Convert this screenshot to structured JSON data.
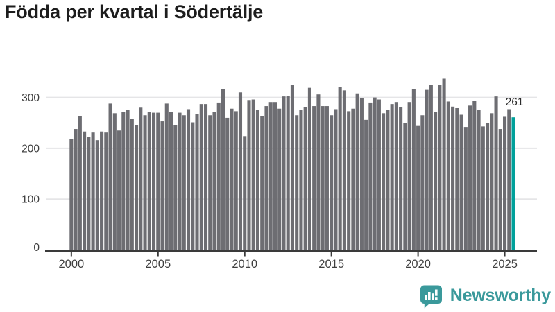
{
  "title": "Födda per kvartal i Södertälje",
  "branding": {
    "name": "Newsworthy"
  },
  "colors": {
    "bar": "#6d6d72",
    "highlight": "#00a09a",
    "axis": "#3a3a3a",
    "grid": "#e5e5e7",
    "tick_text": "#3f3f3f",
    "title_text": "#1d1d1d",
    "annotation_text": "#2b2b2b",
    "brand": "#3a999b"
  },
  "chart_data": {
    "type": "bar",
    "title": "Födda per kvartal i Södertälje",
    "frequency": "quarterly",
    "start_period": "2000-Q1",
    "end_period": "2025-Q3",
    "x_tick_labels": [
      "2000",
      "2005",
      "2010",
      "2015",
      "2020",
      "2025"
    ],
    "y_ticks": [
      0,
      100,
      200,
      300
    ],
    "ylim": [
      0,
      350
    ],
    "grid": true,
    "legend": false,
    "highlight_last": true,
    "last_value_label": "261",
    "values": [
      218,
      238,
      263,
      233,
      223,
      231,
      216,
      233,
      231,
      288,
      269,
      235,
      272,
      275,
      258,
      246,
      280,
      265,
      271,
      270,
      270,
      253,
      288,
      272,
      245,
      270,
      265,
      277,
      251,
      268,
      287,
      287,
      265,
      271,
      290,
      317,
      260,
      278,
      273,
      310,
      224,
      295,
      296,
      275,
      263,
      283,
      291,
      291,
      278,
      302,
      303,
      324,
      265,
      276,
      281,
      319,
      283,
      306,
      283,
      283,
      265,
      277,
      320,
      314,
      273,
      278,
      308,
      299,
      256,
      290,
      300,
      296,
      269,
      276,
      287,
      291,
      281,
      249,
      291,
      316,
      244,
      265,
      315,
      325,
      271,
      324,
      337,
      292,
      282,
      279,
      266,
      242,
      284,
      294,
      276,
      243,
      249,
      269,
      302,
      238,
      262,
      277,
      261
    ]
  }
}
